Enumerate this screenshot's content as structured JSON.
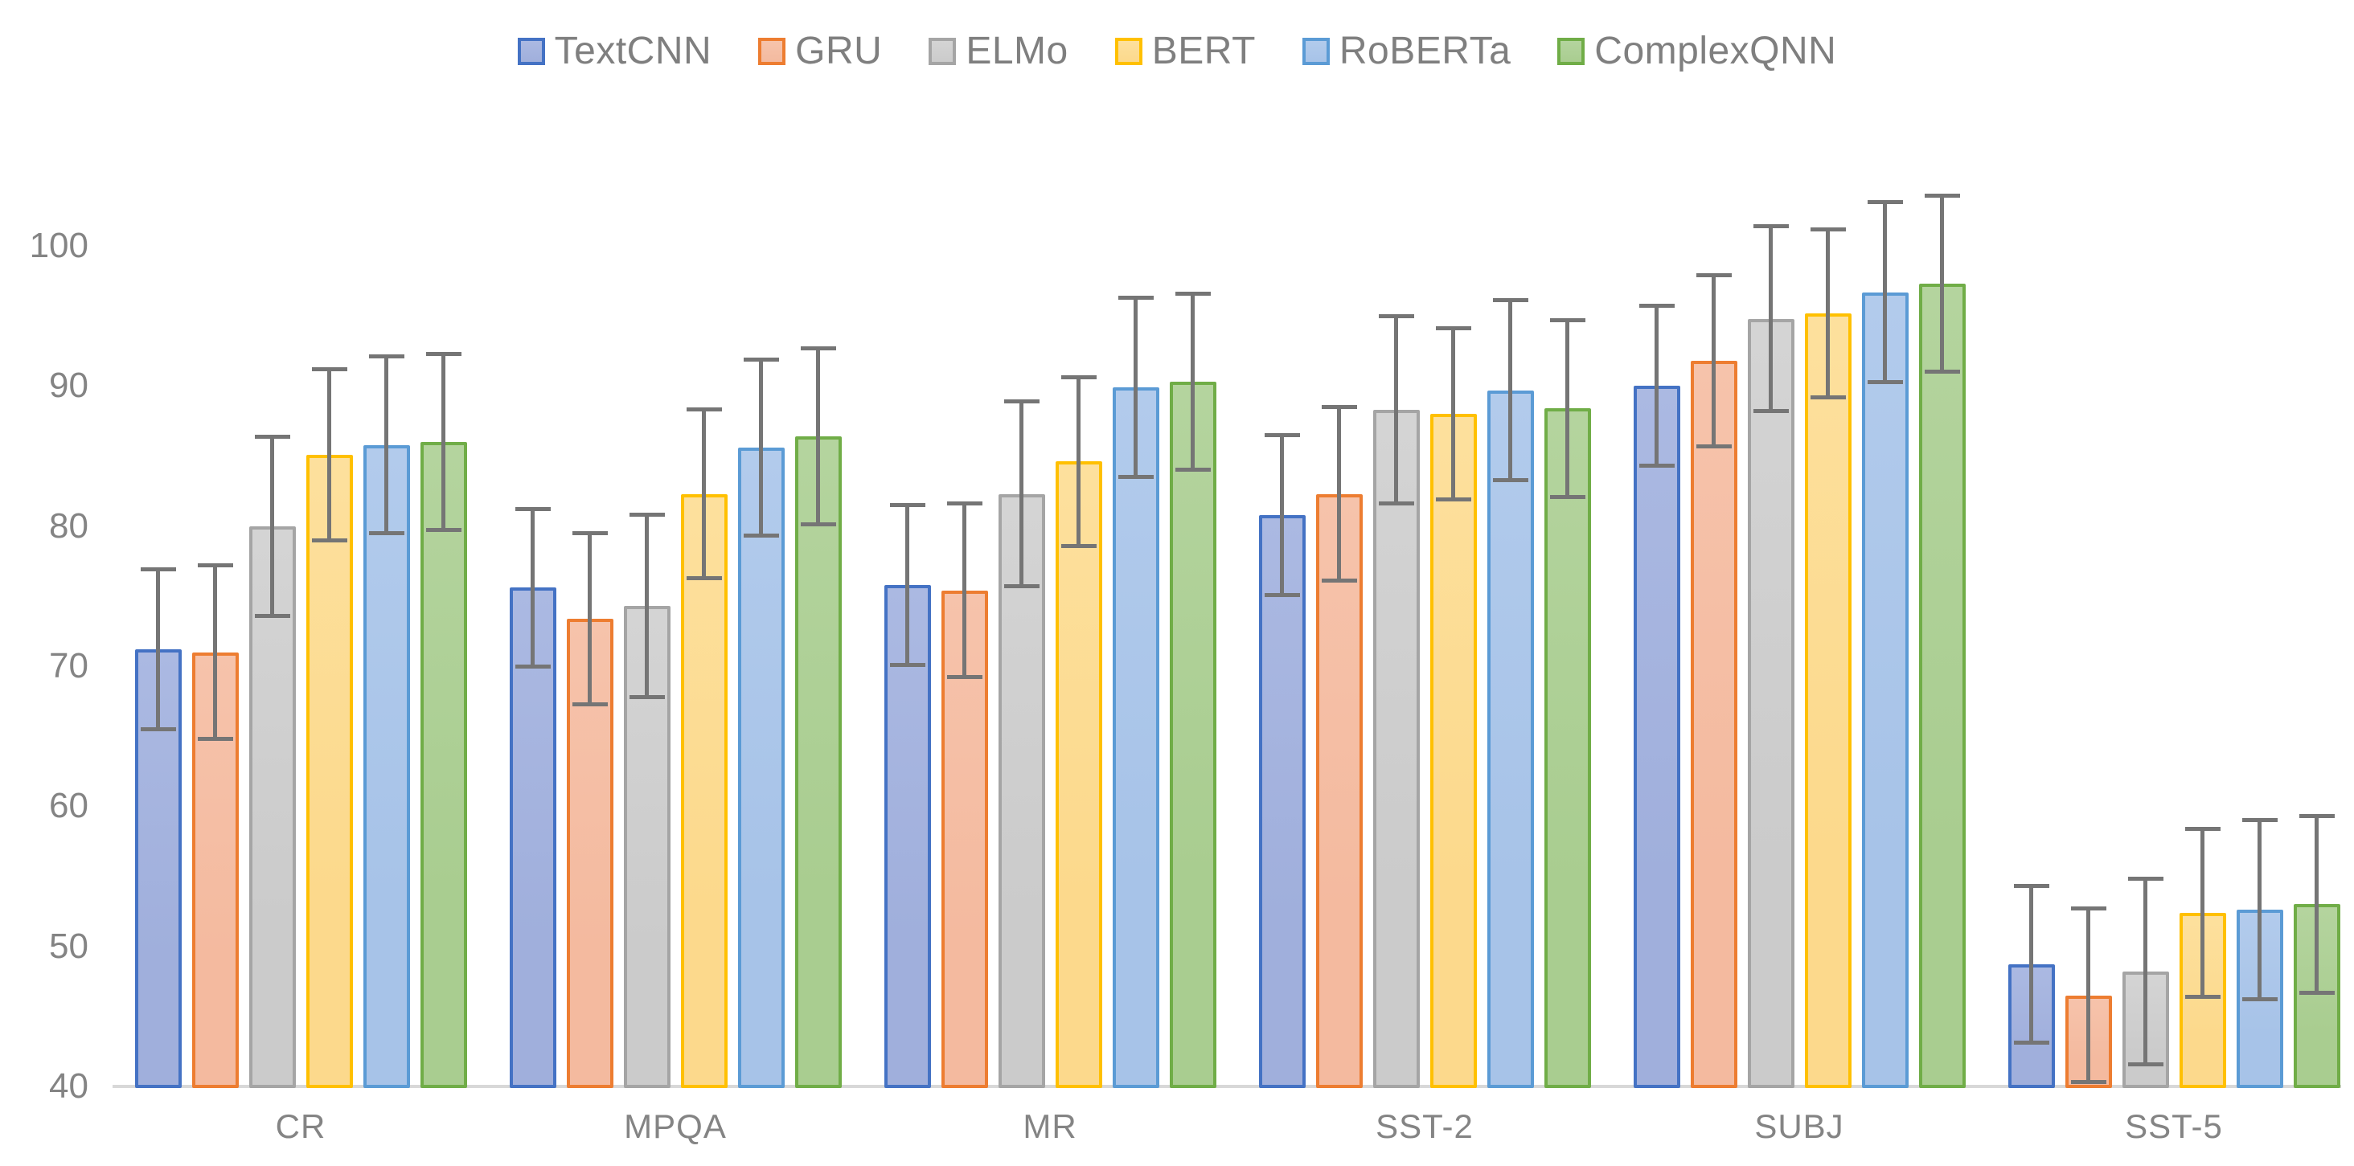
{
  "chart_data": {
    "type": "bar",
    "title": "",
    "xlabel": "",
    "ylabel": "",
    "categories": [
      "CR",
      "MPQA",
      "MR",
      "SST-2",
      "SUBJ",
      "SST-5"
    ],
    "series": [
      {
        "name": "TextCNN",
        "fill": "#A0AFDC",
        "fill_light": "#ABB9E2",
        "border": "#4472C4",
        "values": [
          71.2,
          75.6,
          75.8,
          80.8,
          90.0,
          48.7
        ],
        "errors": [
          5.7,
          5.6,
          5.7,
          5.7,
          5.7,
          5.6
        ]
      },
      {
        "name": "GRU",
        "fill": "#F4BA9F",
        "fill_light": "#F6C3AB",
        "border": "#ED7D31",
        "values": [
          71.0,
          73.4,
          75.4,
          82.3,
          91.8,
          46.5
        ],
        "errors": [
          6.2,
          6.1,
          6.2,
          6.2,
          6.1,
          6.2
        ]
      },
      {
        "name": "ELMo",
        "fill": "#CBCBCB",
        "fill_light": "#D4D4D4",
        "border": "#A5A5A5",
        "values": [
          80.0,
          74.3,
          82.3,
          88.3,
          94.8,
          48.2
        ],
        "errors": [
          6.4,
          6.5,
          6.6,
          6.7,
          6.6,
          6.6
        ]
      },
      {
        "name": "BERT",
        "fill": "#FCD98C",
        "fill_light": "#FDE09D",
        "border": "#FFC000",
        "values": [
          85.1,
          82.3,
          84.6,
          88.0,
          95.2,
          52.4
        ],
        "errors": [
          6.1,
          6.0,
          6.0,
          6.1,
          6.0,
          6.0
        ]
      },
      {
        "name": "RoBERTa",
        "fill": "#A7C3E8",
        "fill_light": "#B2CBEC",
        "border": "#5B9BD5",
        "values": [
          85.8,
          85.6,
          89.9,
          89.7,
          96.7,
          52.6
        ],
        "errors": [
          6.3,
          6.3,
          6.4,
          6.4,
          6.4,
          6.4
        ]
      },
      {
        "name": "ComplexQNN",
        "fill": "#A9CD90",
        "fill_light": "#B4D49E",
        "border": "#70AD47",
        "values": [
          86.0,
          86.4,
          90.3,
          88.4,
          97.3,
          53.0
        ],
        "errors": [
          6.3,
          6.3,
          6.3,
          6.3,
          6.3,
          6.3
        ]
      }
    ],
    "ylim": [
      40,
      100
    ],
    "yticks": [
      40,
      50,
      60,
      70,
      80,
      90,
      100
    ],
    "grid": false,
    "legend_position": "top",
    "error_bar_color": "#757575",
    "axis_line_color": "#D8D8D8",
    "text_color": "#848484"
  }
}
